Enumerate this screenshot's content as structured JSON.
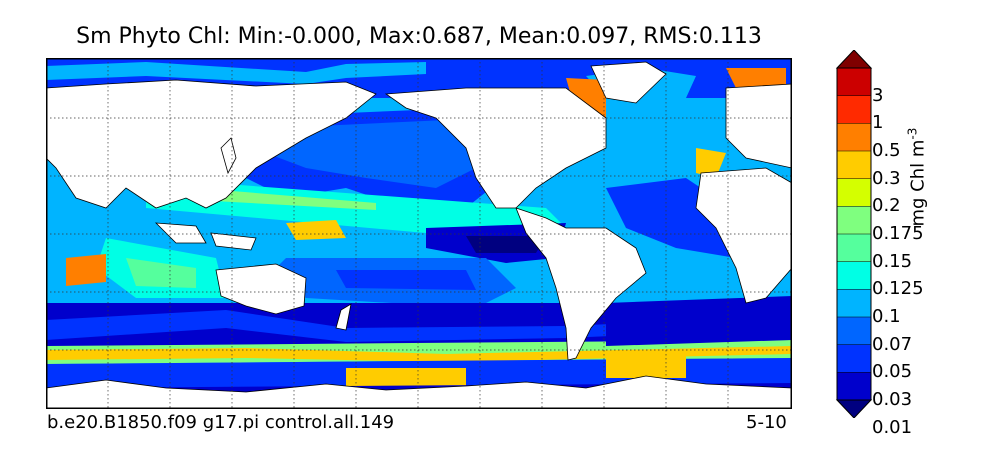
{
  "title": "Sm Phyto Chl: Min:-0.000, Max:0.687, Mean:0.097, RMS:0.113",
  "footer": {
    "run_name": "b.e20.B1850.f09 g17.pi control.all.149",
    "period": "5-10"
  },
  "colorbar": {
    "unit_text": "mg Chl m",
    "unit_exponent": "-3",
    "labels": [
      "3",
      "1",
      "0.5",
      "0.3",
      "0.2",
      "0.175",
      "0.15",
      "0.125",
      "0.1",
      "0.07",
      "0.05",
      "0.03",
      "0.01"
    ],
    "colors": [
      "#7f0000",
      "#cc0000",
      "#ff2a00",
      "#ff7f00",
      "#ffcc00",
      "#d4ff00",
      "#7fff7f",
      "#55ff9d",
      "#00ffe5",
      "#00b4ff",
      "#0066ff",
      "#0033ff",
      "#0000cc",
      "#000080"
    ],
    "extend": "both"
  },
  "map": {
    "projection": "equirectangular, centered ~180E",
    "land_color": "#ffffff",
    "graticule": "dotted",
    "legend_placement": "right"
  }
}
